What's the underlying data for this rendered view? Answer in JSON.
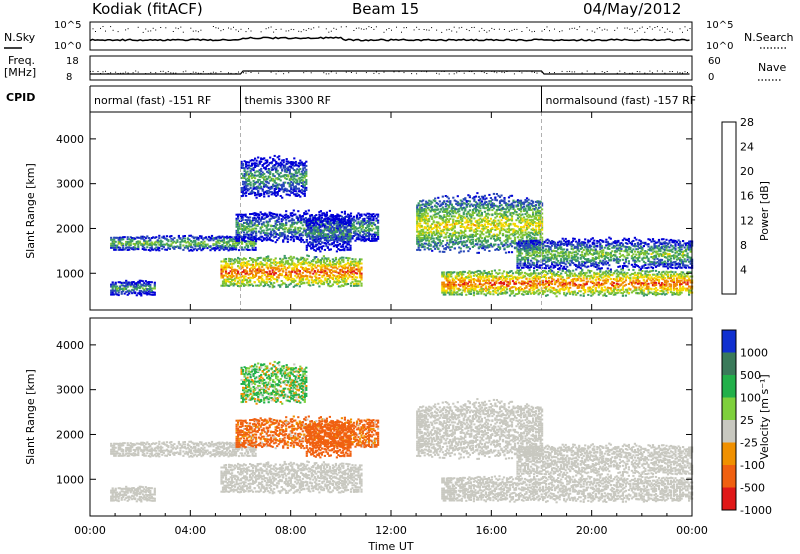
{
  "header": {
    "station": "Kodiak (fitACF)",
    "beam": "Beam 15",
    "date": "04/May/2012"
  },
  "status_panels": {
    "nsky_label": "N.Sky",
    "nsearch_label": "N.Search",
    "freq_label_1": "Freq.",
    "freq_label_2": "[MHz]",
    "nave_label": "Nave",
    "cpid_label": "CPID",
    "noise_ticks_left": [
      "10^5",
      "10^0"
    ],
    "noise_ticks_right": [
      "10^5",
      "10^0"
    ],
    "freq_ticks": [
      "18",
      "8"
    ],
    "nave_ticks": [
      "60",
      "0"
    ],
    "cpid_segments": [
      {
        "label": "normal (fast) -151 RF",
        "start_h": 0,
        "end_h": 6
      },
      {
        "label": "themis 3300 RF",
        "start_h": 6,
        "end_h": 18
      },
      {
        "label": "normalsound (fast) -157 RF",
        "start_h": 18,
        "end_h": 24
      }
    ]
  },
  "axes": {
    "x_ticks": [
      "00:00",
      "04:00",
      "08:00",
      "12:00",
      "16:00",
      "20:00",
      "00:00"
    ],
    "x_title": "Time UT",
    "y_title": "Slant Range [km]",
    "y_ticks": [
      "1000",
      "2000",
      "3000",
      "4000"
    ]
  },
  "power_scale": {
    "title": "Power [dB]",
    "labels": [
      "4",
      "8",
      "12",
      "16",
      "20",
      "24",
      "28"
    ],
    "colors": [
      "#0000d8",
      "#2848b8",
      "#3c9a64",
      "#7fc432",
      "#f5d800",
      "#f08a00",
      "#e01818"
    ]
  },
  "velocity_scale": {
    "title": "Velocity [m s⁻¹]",
    "labels": [
      "1000",
      "500",
      "100",
      "25",
      "-25",
      "-100",
      "-500",
      "-1000"
    ],
    "colors": [
      "#1030d0",
      "#3a7a5a",
      "#22b04a",
      "#7ed03c",
      "#c8c8c0",
      "#f09000",
      "#f06010",
      "#e01818"
    ]
  },
  "chart_data": {
    "type": "heatmap",
    "title": "Kodiak (fitACF)  Beam 15  04/May/2012",
    "xlabel": "Time UT",
    "ylabel": "Slant Range [km]",
    "xlim": [
      0,
      24
    ],
    "ylim": [
      180,
      4600
    ],
    "x_ticks_hours": [
      0,
      4,
      8,
      12,
      16,
      20,
      24
    ],
    "y_ticks_km": [
      1000,
      2000,
      3000,
      4000
    ],
    "power_colorbar_db": [
      4,
      8,
      12,
      16,
      20,
      24,
      28
    ],
    "velocity_colorbar_ms": [
      1000,
      500,
      100,
      25,
      -25,
      -100,
      -500,
      -1000
    ],
    "cpid_change_hours": [
      6,
      18
    ],
    "backscatter_regions": [
      {
        "name": "band-1700",
        "t_start": 0.8,
        "t_end": 6.6,
        "range_low_km": 1500,
        "range_high_km": 1800,
        "power_db": 16,
        "velocity_ms": 0
      },
      {
        "name": "band-600",
        "t_start": 0.8,
        "t_end": 2.6,
        "range_low_km": 500,
        "range_high_km": 800,
        "power_db": 14,
        "velocity_ms": 0
      },
      {
        "name": "surge-1100",
        "t_start": 5.2,
        "t_end": 10.8,
        "range_low_km": 700,
        "range_high_km": 1300,
        "power_db": 26,
        "velocity_ms": 0
      },
      {
        "name": "band-2050",
        "t_start": 5.8,
        "t_end": 11.5,
        "range_low_km": 1700,
        "range_high_km": 2300,
        "power_db": 14,
        "velocity_ms": -200
      },
      {
        "name": "patch-3200",
        "t_start": 6.0,
        "t_end": 8.6,
        "range_low_km": 2700,
        "range_high_km": 3500,
        "power_db": 14,
        "velocity_ms": 100
      },
      {
        "name": "burst-1900",
        "t_start": 8.6,
        "t_end": 10.4,
        "range_low_km": 1500,
        "range_high_km": 2200,
        "power_db": 12,
        "velocity_ms": -300
      },
      {
        "name": "arc-2300",
        "t_start": 13.0,
        "t_end": 18.0,
        "range_low_km": 1500,
        "range_high_km": 2600,
        "power_db": 20,
        "velocity_ms": 0
      },
      {
        "name": "echo-800",
        "t_start": 14.0,
        "t_end": 24.0,
        "range_low_km": 500,
        "range_high_km": 1000,
        "power_db": 26,
        "velocity_ms": 0
      },
      {
        "name": "band-1300",
        "t_start": 17.0,
        "t_end": 24.0,
        "range_low_km": 1100,
        "range_high_km": 1700,
        "power_db": 16,
        "velocity_ms": 0
      }
    ]
  }
}
